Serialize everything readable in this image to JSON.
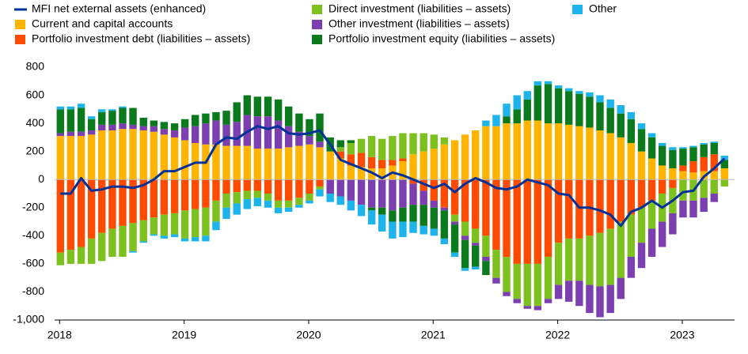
{
  "chart_data": {
    "type": "bar",
    "stacked": true,
    "x": [
      2018,
      2018.083,
      2018.167,
      2018.25,
      2018.333,
      2018.417,
      2018.5,
      2018.583,
      2018.667,
      2018.75,
      2018.833,
      2018.917,
      2019,
      2019.083,
      2019.167,
      2019.25,
      2019.333,
      2019.417,
      2019.5,
      2019.583,
      2019.667,
      2019.75,
      2019.833,
      2019.917,
      2020,
      2020.083,
      2020.167,
      2020.25,
      2020.333,
      2020.417,
      2020.5,
      2020.583,
      2020.667,
      2020.75,
      2020.833,
      2020.917,
      2021,
      2021.083,
      2021.167,
      2021.25,
      2021.333,
      2021.417,
      2021.5,
      2021.583,
      2021.667,
      2021.75,
      2021.833,
      2021.917,
      2022,
      2022.083,
      2022.167,
      2022.25,
      2022.333,
      2022.417,
      2022.5,
      2022.583,
      2022.667,
      2022.75,
      2022.833,
      2022.917,
      2023,
      2023.083,
      2023.167,
      2023.25,
      2023.333
    ],
    "xlim": [
      2017.96,
      2023.42
    ],
    "xticks": [
      2018,
      2019,
      2020,
      2021,
      2022,
      2023
    ],
    "ylim": [
      -1000,
      800
    ],
    "yticks": [
      {
        "value": -1000,
        "label": "-1,000"
      },
      -800,
      -600,
      -400,
      -200,
      0,
      200,
      400,
      600,
      800
    ],
    "series": [
      {
        "name": "MFI net external assets (enhanced)",
        "kind": "line",
        "color": "#003299",
        "values": [
          -100,
          -100,
          10,
          -80,
          -70,
          -50,
          -50,
          -60,
          -40,
          0,
          60,
          60,
          90,
          120,
          120,
          250,
          300,
          290,
          340,
          380,
          360,
          380,
          330,
          320,
          330,
          350,
          250,
          140,
          110,
          80,
          50,
          10,
          50,
          30,
          0,
          -30,
          -60,
          -30,
          -90,
          -30,
          10,
          -20,
          -60,
          -70,
          -50,
          0,
          -20,
          -40,
          -100,
          -110,
          -200,
          -200,
          -220,
          -250,
          -330,
          -230,
          -200,
          -150,
          -200,
          -150,
          -90,
          -80,
          20,
          80,
          150
        ]
      },
      {
        "name": "Current and capital accounts",
        "color": "#ffb400",
        "values": [
          310,
          310,
          310,
          320,
          350,
          350,
          360,
          360,
          350,
          340,
          320,
          300,
          280,
          260,
          250,
          250,
          240,
          240,
          240,
          220,
          220,
          220,
          230,
          240,
          250,
          230,
          200,
          150,
          100,
          90,
          80,
          80,
          100,
          130,
          180,
          200,
          220,
          250,
          280,
          320,
          350,
          380,
          380,
          400,
          400,
          420,
          420,
          400,
          400,
          390,
          380,
          370,
          350,
          330,
          300,
          260,
          200,
          150,
          100,
          80,
          60,
          50,
          60,
          60,
          80
        ]
      },
      {
        "name": "Portfolio investment debt (liabilities – assets)",
        "color": "#ff4b00",
        "values": [
          -520,
          -500,
          -480,
          -420,
          -380,
          -350,
          -330,
          -310,
          -290,
          -270,
          -250,
          -240,
          -220,
          -210,
          -200,
          -150,
          -100,
          -90,
          -80,
          -80,
          -100,
          -150,
          -150,
          -130,
          -100,
          -50,
          0,
          50,
          80,
          100,
          80,
          60,
          40,
          20,
          -30,
          -80,
          -150,
          -200,
          -250,
          -300,
          -350,
          -400,
          -500,
          -550,
          -600,
          -600,
          -600,
          -550,
          -450,
          -420,
          -420,
          -400,
          -380,
          -350,
          -300,
          -250,
          -200,
          -150,
          -100,
          -60,
          40,
          80,
          100,
          120,
          0
        ]
      },
      {
        "name": "Direct investment (liabilities – assets)",
        "color": "#7dc11f",
        "values": [
          -90,
          -100,
          -120,
          -180,
          -200,
          -200,
          -220,
          -200,
          -150,
          -120,
          -150,
          -150,
          -200,
          -200,
          -200,
          -150,
          -100,
          -80,
          -60,
          -50,
          -50,
          -50,
          -50,
          -50,
          -50,
          -20,
          0,
          30,
          80,
          100,
          150,
          150,
          170,
          180,
          150,
          130,
          100,
          50,
          -50,
          -100,
          -100,
          -150,
          -200,
          -250,
          -250,
          -300,
          -300,
          -300,
          -300,
          -300,
          -300,
          -350,
          -380,
          -400,
          -400,
          -300,
          -250,
          -200,
          -200,
          -180,
          -150,
          -150,
          -130,
          -100,
          -50
        ]
      },
      {
        "name": "Other investment (liabilities – assets)",
        "color": "#7b3fb0",
        "values": [
          20,
          30,
          30,
          30,
          40,
          40,
          40,
          30,
          30,
          40,
          40,
          50,
          90,
          120,
          150,
          170,
          150,
          170,
          220,
          230,
          230,
          200,
          150,
          100,
          60,
          40,
          -100,
          -120,
          -150,
          -180,
          -200,
          -200,
          -220,
          -200,
          -150,
          -100,
          -50,
          -20,
          -20,
          -30,
          -20,
          -30,
          -40,
          -30,
          -30,
          -20,
          -30,
          -30,
          -100,
          -150,
          -180,
          -200,
          -220,
          -200,
          -150,
          -150,
          -180,
          -200,
          -180,
          -150,
          -120,
          -120,
          -100,
          -60,
          0
        ]
      },
      {
        "name": "Portfolio investment equity (liabilities – assets)",
        "color": "#0a7a1c",
        "values": [
          170,
          160,
          170,
          80,
          90,
          100,
          110,
          120,
          60,
          40,
          50,
          50,
          60,
          80,
          70,
          60,
          100,
          140,
          140,
          140,
          140,
          150,
          140,
          130,
          120,
          200,
          100,
          50,
          20,
          0,
          -20,
          -50,
          -80,
          -100,
          -120,
          -150,
          -150,
          -200,
          -200,
          -200,
          -150,
          -100,
          0,
          50,
          100,
          150,
          250,
          280,
          250,
          240,
          230,
          220,
          200,
          180,
          170,
          170,
          160,
          150,
          140,
          130,
          120,
          100,
          90,
          80,
          60
        ]
      },
      {
        "name": "Other",
        "color": "#1cb4ea",
        "values": [
          20,
          20,
          30,
          20,
          20,
          10,
          10,
          -10,
          -10,
          -10,
          -20,
          -20,
          -20,
          -30,
          -40,
          -60,
          -80,
          -80,
          -70,
          -60,
          -50,
          -40,
          -30,
          -20,
          -20,
          -50,
          -60,
          -60,
          -70,
          -80,
          -100,
          -120,
          -120,
          -110,
          -80,
          -60,
          -50,
          -40,
          -30,
          -20,
          -20,
          40,
          80,
          90,
          100,
          60,
          30,
          20,
          20,
          20,
          20,
          30,
          50,
          60,
          60,
          50,
          40,
          30,
          20,
          20,
          10,
          10,
          10,
          10,
          30
        ]
      }
    ]
  }
}
